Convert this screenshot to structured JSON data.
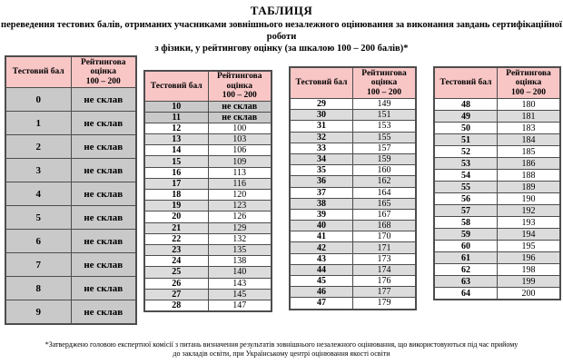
{
  "page": {
    "title": "ТАБЛИЦЯ",
    "subtitle_line1": "переведення тестових балів, отриманих учасниками зовнішнього незалежного оцінювання за виконання завдань сертифікаційної роботи",
    "subtitle_line2": "з фізики, у рейтингову оцінку (за шкалою 100 – 200 балів)*",
    "footnote_line1": "*Затверджено головою експертної комісії з питань визначення результатів зовнішнього незалежного оцінювання, що використовуються під час прийому",
    "footnote_line2": "до закладів освіти, при Українському центрі оцінювання якості освіти"
  },
  "columns": {
    "score": "Тестовий бал",
    "rating_line1": "Рейтингова",
    "rating_line2": "оцінка",
    "rating_line3": "100 – 200"
  },
  "fail_label": "не склав",
  "colors": {
    "header_pink": "#f9c6c6",
    "fail_gray": "#c9c9c9",
    "alt_row_gray": "#dcdcdc",
    "row_white": "#ffffff",
    "border_dark": "#4d4d4d"
  },
  "tables": [
    {
      "rows": [
        [
          "0",
          "не склав"
        ],
        [
          "1",
          "не склав"
        ],
        [
          "2",
          "не склав"
        ],
        [
          "3",
          "не склав"
        ],
        [
          "4",
          "не склав"
        ],
        [
          "5",
          "не склав"
        ],
        [
          "6",
          "не склав"
        ],
        [
          "7",
          "не склав"
        ],
        [
          "8",
          "не склав"
        ],
        [
          "9",
          "не склав"
        ]
      ]
    },
    {
      "rows": [
        [
          "10",
          "не склав"
        ],
        [
          "11",
          "не склав"
        ],
        [
          "12",
          "100"
        ],
        [
          "13",
          "103"
        ],
        [
          "14",
          "106"
        ],
        [
          "15",
          "109"
        ],
        [
          "16",
          "113"
        ],
        [
          "17",
          "116"
        ],
        [
          "18",
          "120"
        ],
        [
          "19",
          "123"
        ],
        [
          "20",
          "126"
        ],
        [
          "21",
          "129"
        ],
        [
          "22",
          "132"
        ],
        [
          "23",
          "135"
        ],
        [
          "24",
          "138"
        ],
        [
          "25",
          "140"
        ],
        [
          "26",
          "143"
        ],
        [
          "27",
          "145"
        ],
        [
          "28",
          "147"
        ]
      ]
    },
    {
      "rows": [
        [
          "29",
          "149"
        ],
        [
          "30",
          "151"
        ],
        [
          "31",
          "153"
        ],
        [
          "32",
          "155"
        ],
        [
          "33",
          "157"
        ],
        [
          "34",
          "159"
        ],
        [
          "35",
          "160"
        ],
        [
          "36",
          "162"
        ],
        [
          "37",
          "164"
        ],
        [
          "38",
          "165"
        ],
        [
          "39",
          "167"
        ],
        [
          "40",
          "168"
        ],
        [
          "41",
          "170"
        ],
        [
          "42",
          "171"
        ],
        [
          "43",
          "173"
        ],
        [
          "44",
          "174"
        ],
        [
          "45",
          "176"
        ],
        [
          "46",
          "177"
        ],
        [
          "47",
          "179"
        ]
      ]
    },
    {
      "rows": [
        [
          "48",
          "180"
        ],
        [
          "49",
          "181"
        ],
        [
          "50",
          "183"
        ],
        [
          "51",
          "184"
        ],
        [
          "52",
          "185"
        ],
        [
          "53",
          "186"
        ],
        [
          "54",
          "188"
        ],
        [
          "55",
          "189"
        ],
        [
          "56",
          "190"
        ],
        [
          "57",
          "192"
        ],
        [
          "58",
          "193"
        ],
        [
          "59",
          "194"
        ],
        [
          "60",
          "195"
        ],
        [
          "61",
          "196"
        ],
        [
          "62",
          "198"
        ],
        [
          "63",
          "199"
        ],
        [
          "64",
          "200"
        ]
      ]
    }
  ]
}
